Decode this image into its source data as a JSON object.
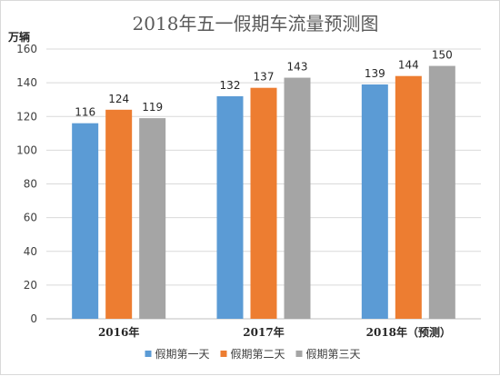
{
  "chart_data": {
    "type": "bar",
    "title": "2018年五一假期车流量预测图",
    "ylabel": "万辆",
    "xlabel": "",
    "ylim": [
      0,
      160
    ],
    "yticks": [
      0,
      20,
      40,
      60,
      80,
      100,
      120,
      140,
      160
    ],
    "categories": [
      "2016年",
      "2017年",
      "2018年（预测）"
    ],
    "series": [
      {
        "name": "假期第一天",
        "color": "#5b9bd5",
        "values": [
          116,
          132,
          139
        ]
      },
      {
        "name": "假期第二天",
        "color": "#ed7d31",
        "values": [
          124,
          137,
          144
        ]
      },
      {
        "name": "假期第三天",
        "color": "#a5a5a5",
        "values": [
          119,
          143,
          150
        ]
      }
    ],
    "grid": true,
    "legend_position": "bottom",
    "data_labels": true
  }
}
